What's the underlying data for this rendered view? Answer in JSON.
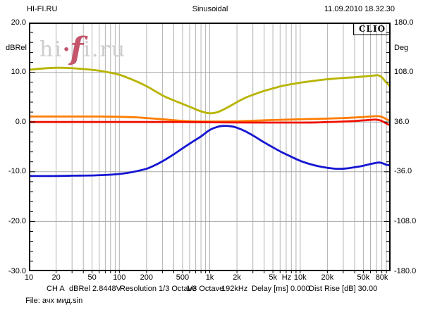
{
  "header": {
    "app": "HI-FI.RU",
    "title": "Sinusoidal",
    "datetime": "11.09.2010 18.32.30"
  },
  "badge": "CLIO",
  "watermark": {
    "parts": [
      {
        "text": "hi",
        "style": "gray"
      },
      {
        "text": "·",
        "style": "red"
      },
      {
        "text": "f",
        "style": "red-italic"
      },
      {
        "text": "i.ru",
        "style": "gray"
      }
    ]
  },
  "axes": {
    "left_unit": "dBRel",
    "right_unit": "Deg",
    "left_ticks": [
      {
        "label": "20.0",
        "v": 20
      },
      {
        "label": "10.0",
        "v": 10
      },
      {
        "label": "0.0",
        "v": 0
      },
      {
        "label": "-10.0",
        "v": -10
      },
      {
        "label": "-20.0",
        "v": -20
      },
      {
        "label": "-30.0",
        "v": -30
      }
    ],
    "right_ticks": [
      {
        "label": "180.0",
        "v": 20
      },
      {
        "label": "108.0",
        "v": 10
      },
      {
        "label": "36.0",
        "v": 0
      },
      {
        "label": "-36.0",
        "v": -10
      },
      {
        "label": "-108.0",
        "v": -20
      },
      {
        "label": "-180.0",
        "v": -30
      }
    ],
    "bottom_ticks": [
      {
        "label": "10",
        "f": 10
      },
      {
        "label": "20",
        "f": 20
      },
      {
        "label": "50",
        "f": 50
      },
      {
        "label": "100",
        "f": 100
      },
      {
        "label": "200",
        "f": 200
      },
      {
        "label": "500",
        "f": 500
      },
      {
        "label": "1k",
        "f": 1000
      },
      {
        "label": "2k",
        "f": 2000
      },
      {
        "label": "5k",
        "f": 5000
      },
      {
        "label": "Hz",
        "f": 7071
      },
      {
        "label": "10k",
        "f": 10000
      },
      {
        "label": "20k",
        "f": 20000
      },
      {
        "label": "50k",
        "f": 50000
      },
      {
        "label": "80k",
        "f": 80000
      }
    ]
  },
  "chart_data": {
    "type": "line",
    "title": "Sinusoidal",
    "x_scale": "log",
    "x_range_hz": [
      10,
      100000
    ],
    "y_left": {
      "label": "dBRel",
      "range": [
        -30,
        20
      ],
      "gridlines_db": [
        10,
        0,
        -10,
        -20
      ]
    },
    "y_right": {
      "label": "Deg",
      "range": [
        -180,
        180
      ]
    },
    "grid": "log decades 2-9 vertical, 10 dB horizontal",
    "legend": "none",
    "series": [
      {
        "name": "yellow",
        "color": "#b8b400",
        "points": [
          [
            10,
            10.5
          ],
          [
            14,
            10.75
          ],
          [
            20,
            10.9
          ],
          [
            28,
            10.85
          ],
          [
            40,
            10.65
          ],
          [
            55,
            10.4
          ],
          [
            70,
            10.1
          ],
          [
            100,
            9.5
          ],
          [
            140,
            8.5
          ],
          [
            200,
            7.2
          ],
          [
            260,
            6.0
          ],
          [
            320,
            5.1
          ],
          [
            400,
            4.35
          ],
          [
            500,
            3.65
          ],
          [
            630,
            2.9
          ],
          [
            800,
            2.15
          ],
          [
            1000,
            1.75
          ],
          [
            1250,
            2.05
          ],
          [
            1600,
            3.0
          ],
          [
            2000,
            4.0
          ],
          [
            2500,
            4.9
          ],
          [
            3200,
            5.65
          ],
          [
            4000,
            6.25
          ],
          [
            5000,
            6.75
          ],
          [
            6300,
            7.25
          ],
          [
            8000,
            7.6
          ],
          [
            10000,
            7.9
          ],
          [
            12500,
            8.15
          ],
          [
            16000,
            8.4
          ],
          [
            20000,
            8.6
          ],
          [
            25000,
            8.75
          ],
          [
            32000,
            8.9
          ],
          [
            40000,
            9.0
          ],
          [
            50000,
            9.15
          ],
          [
            63000,
            9.3
          ],
          [
            72000,
            9.4
          ],
          [
            80000,
            9.0
          ],
          [
            88000,
            8.1
          ],
          [
            96000,
            7.4
          ],
          [
            100000,
            7.1
          ]
        ]
      },
      {
        "name": "orange",
        "color": "#ff7d00",
        "points": [
          [
            10,
            1.1
          ],
          [
            30,
            1.1
          ],
          [
            60,
            1.1
          ],
          [
            100,
            1.05
          ],
          [
            150,
            0.95
          ],
          [
            200,
            0.8
          ],
          [
            300,
            0.55
          ],
          [
            400,
            0.35
          ],
          [
            500,
            0.22
          ],
          [
            700,
            0.12
          ],
          [
            1000,
            0.1
          ],
          [
            2000,
            0.15
          ],
          [
            3000,
            0.25
          ],
          [
            5000,
            0.4
          ],
          [
            8000,
            0.5
          ],
          [
            12000,
            0.6
          ],
          [
            20000,
            0.7
          ],
          [
            30000,
            0.8
          ],
          [
            40000,
            0.9
          ],
          [
            50000,
            1.0
          ],
          [
            60000,
            1.1
          ],
          [
            70000,
            1.18
          ],
          [
            78000,
            1.1
          ],
          [
            86000,
            0.75
          ],
          [
            93000,
            0.45
          ],
          [
            100000,
            0.3
          ]
        ]
      },
      {
        "name": "red",
        "color": "#f01000",
        "points": [
          [
            10,
            0
          ],
          [
            100,
            0
          ],
          [
            300,
            0
          ],
          [
            600,
            -0.02
          ],
          [
            1000,
            -0.05
          ],
          [
            2000,
            -0.1
          ],
          [
            5000,
            -0.12
          ],
          [
            10000,
            -0.12
          ],
          [
            15000,
            -0.08
          ],
          [
            20000,
            -0.02
          ],
          [
            30000,
            0.1
          ],
          [
            40000,
            0.2
          ],
          [
            50000,
            0.32
          ],
          [
            60000,
            0.42
          ],
          [
            68000,
            0.48
          ],
          [
            76000,
            0.35
          ],
          [
            84000,
            0.0
          ],
          [
            90000,
            -0.3
          ],
          [
            96000,
            -0.55
          ],
          [
            100000,
            -0.65
          ]
        ]
      },
      {
        "name": "blue",
        "color": "#1616d2",
        "points": [
          [
            10,
            -10.85
          ],
          [
            20,
            -10.85
          ],
          [
            30,
            -10.8
          ],
          [
            50,
            -10.75
          ],
          [
            70,
            -10.65
          ],
          [
            100,
            -10.45
          ],
          [
            140,
            -10.05
          ],
          [
            200,
            -9.4
          ],
          [
            260,
            -8.5
          ],
          [
            320,
            -7.6
          ],
          [
            400,
            -6.5
          ],
          [
            500,
            -5.3
          ],
          [
            630,
            -4.1
          ],
          [
            800,
            -2.9
          ],
          [
            1000,
            -1.6
          ],
          [
            1200,
            -1.0
          ],
          [
            1400,
            -0.78
          ],
          [
            1700,
            -0.85
          ],
          [
            2000,
            -1.15
          ],
          [
            2500,
            -1.9
          ],
          [
            3200,
            -3.0
          ],
          [
            4000,
            -4.1
          ],
          [
            5000,
            -5.1
          ],
          [
            6300,
            -6.1
          ],
          [
            8000,
            -7.0
          ],
          [
            10000,
            -7.8
          ],
          [
            12500,
            -8.4
          ],
          [
            16000,
            -8.9
          ],
          [
            20000,
            -9.2
          ],
          [
            25000,
            -9.4
          ],
          [
            32000,
            -9.35
          ],
          [
            40000,
            -9.1
          ],
          [
            48000,
            -8.85
          ],
          [
            58000,
            -8.5
          ],
          [
            68000,
            -8.25
          ],
          [
            75000,
            -8.15
          ],
          [
            82000,
            -8.3
          ],
          [
            90000,
            -8.6
          ],
          [
            100000,
            -8.75
          ]
        ]
      }
    ]
  },
  "status_line": {
    "segments": [
      "CH A",
      "dBRel 2.8448V",
      "Resolution 1/3 Octave",
      "1/3 Octave",
      "192kHz",
      "Delay [ms] 0.000",
      "Dist Rise [dB] 30.00"
    ]
  },
  "file_line": "File: ачх мид.sin",
  "colors": {
    "grid_vertical": "#b2b2b2",
    "grid_horizontal": "#a8a8a8",
    "border": "#000000",
    "watermark_gray": "#cdcdcd",
    "watermark_red": "#c4556b"
  }
}
